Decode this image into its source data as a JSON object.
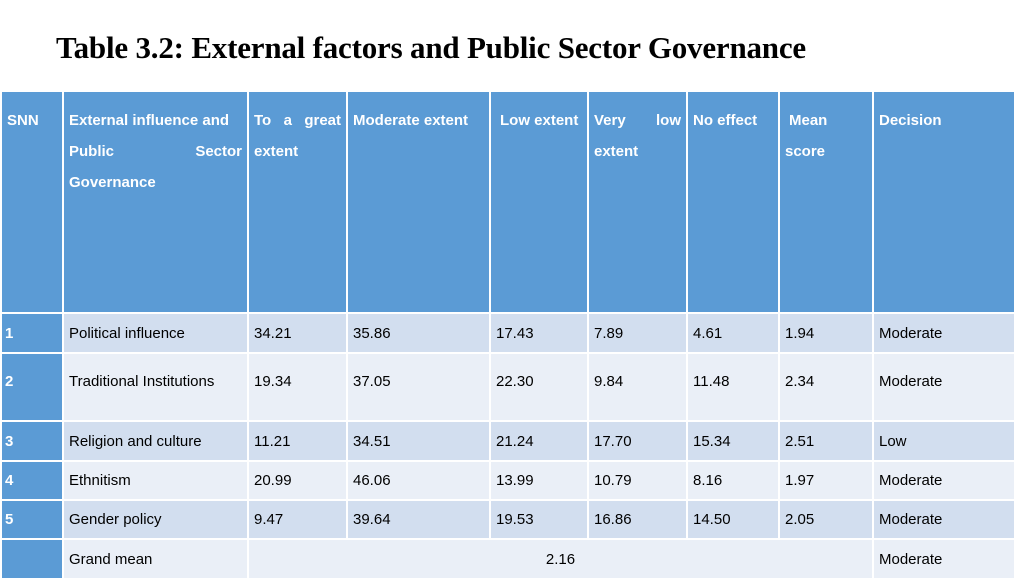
{
  "title": "Table 3.2: External factors and Public Sector Governance",
  "table": {
    "headers": {
      "snn": "SNN",
      "factor_l1": "External influence and",
      "factor_l2a": "Public",
      "factor_l2b": "Sector",
      "factor_l3": "Governance",
      "great_l1a": "To",
      "great_l1b": "a",
      "great_l1c": "great",
      "great_l2": "extent",
      "moderate": "Moderate extent",
      "low": "Low extent",
      "verylow_l1a": "Very",
      "verylow_l1b": "low",
      "verylow_l2": "extent",
      "noeffect": "No effect",
      "mean_l1": "Mean",
      "mean_l2": "score",
      "decision": "Decision"
    },
    "rows": [
      {
        "snn": "1",
        "factor": "Political influence",
        "great": "34.21",
        "moderate": "35.86",
        "low": "17.43",
        "verylow": "7.89",
        "noeffect": "4.61",
        "mean": "1.94",
        "decision": "Moderate"
      },
      {
        "snn": "2",
        "factor": "Traditional Institutions",
        "great": "19.34",
        "moderate": "37.05",
        "low": "22.30",
        "verylow": "9.84",
        "noeffect": "11.48",
        "mean": "2.34",
        "decision": "Moderate"
      },
      {
        "snn": "3",
        "factor": "Religion and culture",
        "great": "11.21",
        "moderate": "34.51",
        "low": "21.24",
        "verylow": "17.70",
        "noeffect": "15.34",
        "mean": "2.51",
        "decision": "Low"
      },
      {
        "snn": "4",
        "factor": "Ethnitism",
        "great": "20.99",
        "moderate": "46.06",
        "low": "13.99",
        "verylow": "10.79",
        "noeffect": "8.16",
        "mean": "1.97",
        "decision": "Moderate"
      },
      {
        "snn": "5",
        "factor": "Gender policy",
        "great": "9.47",
        "moderate": "39.64",
        "low": "19.53",
        "verylow": "16.86",
        "noeffect": "14.50",
        "mean": "2.05",
        "decision": "Moderate"
      }
    ],
    "grand": {
      "label": "Grand mean",
      "value": "2.16",
      "decision": "Moderate"
    }
  }
}
